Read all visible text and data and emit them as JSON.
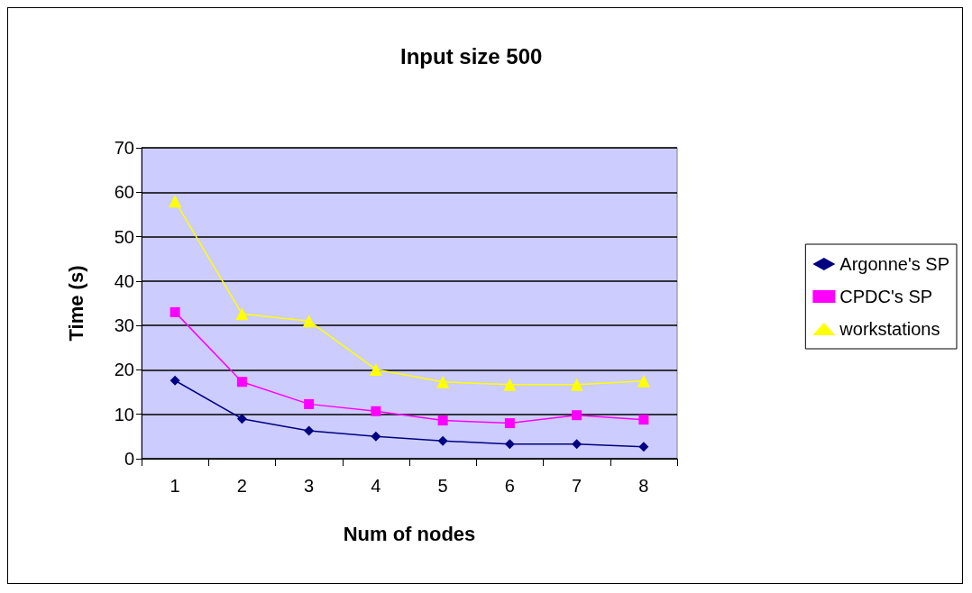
{
  "chart_data": {
    "type": "line",
    "title": "Input size 500",
    "xlabel": "Num of nodes",
    "ylabel": "Time (s)",
    "categories": [
      "1",
      "2",
      "3",
      "4",
      "5",
      "6",
      "7",
      "8"
    ],
    "series": [
      {
        "name": "Argonne's SP",
        "color": "#000080",
        "marker": "diamond",
        "values": [
          17.6,
          9,
          6.3,
          5,
          4,
          3.3,
          3.3,
          2.7
        ]
      },
      {
        "name": "CPDC's SP",
        "color": "#ff00ff",
        "marker": "square",
        "values": [
          33,
          17.3,
          12.3,
          10.7,
          8.6,
          8,
          9.8,
          8.8
        ]
      },
      {
        "name": "workstations",
        "color": "#ffff00",
        "marker": "triangle",
        "values": [
          58,
          32.6,
          31,
          20.1,
          17.3,
          16.7,
          16.7,
          17.5
        ]
      }
    ],
    "ylim": [
      0,
      70
    ],
    "yticks": [
      0,
      10,
      20,
      30,
      40,
      50,
      60,
      70
    ],
    "grid": "y",
    "legend": "right",
    "line_style": "solid"
  }
}
